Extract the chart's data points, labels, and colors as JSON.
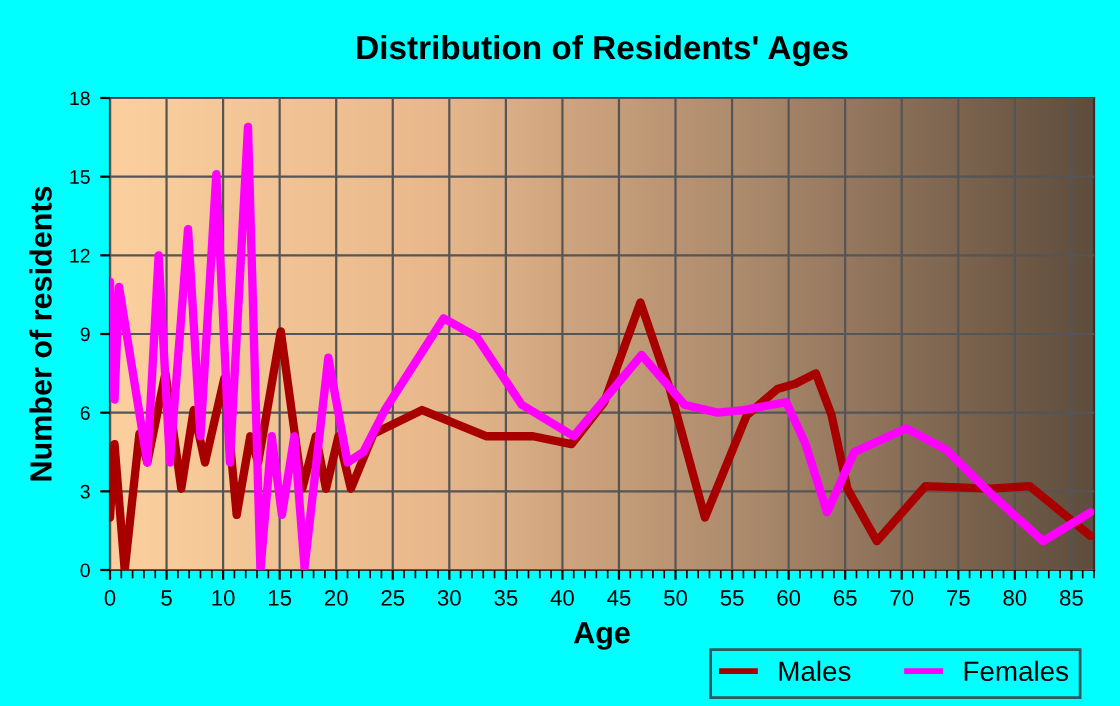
{
  "chart_data": {
    "type": "line",
    "title": "Distribution of Residents' Ages",
    "xlabel": "Age",
    "ylabel": "Number of residents",
    "xlim": [
      0,
      87
    ],
    "xticks": [
      0,
      5,
      10,
      15,
      20,
      25,
      30,
      35,
      40,
      45,
      50,
      55,
      60,
      65,
      70,
      75,
      80,
      85
    ],
    "ylim": [
      0,
      18
    ],
    "yticks": [
      0,
      3,
      6,
      9,
      12,
      15,
      18
    ],
    "grid": true,
    "legend": "bottom right",
    "marker": "none",
    "line_style": "solid",
    "series": [
      {
        "name": "Males",
        "color": "#a80000",
        "x": [
          0,
          0.4,
          1.3,
          2.6,
          3.3,
          4.9,
          6.3,
          7.4,
          8.4,
          10.1,
          11.2,
          12.4,
          13.1,
          15.1,
          17,
          18.2,
          19.1,
          20.2,
          21.3,
          23.3,
          27.6,
          33.3,
          37.4,
          40.8,
          43.7,
          46.9,
          49.5,
          52.6,
          56.3,
          59,
          60.6,
          62.4,
          63.8,
          65.2,
          67.8,
          72.1,
          77.9,
          81.3,
          86.7
        ],
        "values": [
          2,
          4.8,
          0,
          5.2,
          4.1,
          7.5,
          3.1,
          6.1,
          4.1,
          7.3,
          2.1,
          5.1,
          4.1,
          9.1,
          3.1,
          5.1,
          3.1,
          5.1,
          3.1,
          5.2,
          6.1,
          5.1,
          5.1,
          4.8,
          6.4,
          10.2,
          6.9,
          2,
          5.9,
          6.9,
          7.1,
          7.5,
          5.9,
          3.1,
          1.1,
          3.2,
          3.1,
          3.2,
          1.3
        ]
      },
      {
        "name": "Females",
        "color": "#ff00ff",
        "x": [
          0,
          0.4,
          0.8,
          3.3,
          4.3,
          5.3,
          6.9,
          8,
          9.4,
          10.6,
          12.2,
          13.3,
          14.3,
          15.2,
          16.3,
          17.2,
          19.3,
          21,
          22.4,
          24.3,
          29.5,
          32.4,
          36.4,
          41,
          47,
          50.8,
          53.7,
          56,
          59.8,
          61.5,
          63.4,
          65.8,
          70.4,
          73.9,
          77.9,
          82.5,
          86.7
        ],
        "values": [
          11,
          6.5,
          10.8,
          4.1,
          12,
          4.1,
          13,
          5.1,
          15.1,
          4.1,
          16.9,
          0,
          5.1,
          2.1,
          5.1,
          0.1,
          8.1,
          4.1,
          4.5,
          6.1,
          9.6,
          8.9,
          6.3,
          5.1,
          8.2,
          6.3,
          6,
          6.1,
          6.4,
          4.8,
          2.2,
          4.5,
          5.4,
          4.6,
          2.9,
          1.1,
          2.2
        ]
      }
    ]
  }
}
